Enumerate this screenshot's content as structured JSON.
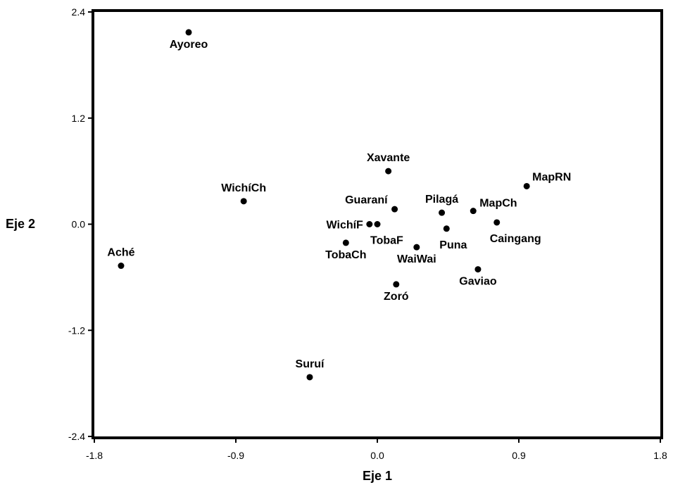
{
  "chart_data": {
    "type": "scatter",
    "title": "",
    "xlabel": "Eje 1",
    "ylabel": "Eje 2",
    "xlim": [
      -1.8,
      1.8
    ],
    "ylim": [
      -2.4,
      2.4
    ],
    "x_ticks": [
      -1.8,
      -0.9,
      0.0,
      0.9,
      1.8
    ],
    "x_tick_labels": [
      "-1.8",
      "-0.9",
      "0.0",
      "0.9",
      "1.8"
    ],
    "y_ticks": [
      -2.4,
      -1.2,
      0.0,
      1.2,
      2.4
    ],
    "y_tick_labels": [
      "-2.4",
      "-1.2",
      "0.0",
      "1.2",
      "2.4"
    ],
    "grid": false,
    "marker_color": "#000000",
    "points": [
      {
        "label": "Ayoreo",
        "x": -1.2,
        "y": 2.17,
        "label_pos": "below"
      },
      {
        "label": "WichíCh",
        "x": -0.85,
        "y": 0.26,
        "label_pos": "above"
      },
      {
        "label": "Aché",
        "x": -1.63,
        "y": -0.47,
        "label_pos": "above"
      },
      {
        "label": "Xavante",
        "x": 0.07,
        "y": 0.6,
        "label_pos": "above"
      },
      {
        "label": "MapRN",
        "x": 0.95,
        "y": 0.43,
        "label_pos": "above-right"
      },
      {
        "label": "Guaraní",
        "x": 0.11,
        "y": 0.17,
        "label_pos": "above-left"
      },
      {
        "label": "Pilagá",
        "x": 0.41,
        "y": 0.13,
        "label_pos": "above"
      },
      {
        "label": "MapCh",
        "x": 0.61,
        "y": 0.15,
        "label_pos": "right"
      },
      {
        "label": "Caingang",
        "x": 0.76,
        "y": 0.02,
        "label_pos": "below-right"
      },
      {
        "label": "WichíF",
        "x": -0.05,
        "y": 0.0,
        "label_pos": "left"
      },
      {
        "label": "TobaF",
        "x": 0.0,
        "y": 0.0,
        "label_pos": "below-right"
      },
      {
        "label": "Puna",
        "x": 0.44,
        "y": -0.05,
        "label_pos": "below-right"
      },
      {
        "label": "TobaCh",
        "x": -0.2,
        "y": -0.21,
        "label_pos": "below"
      },
      {
        "label": "WaiWai",
        "x": 0.25,
        "y": -0.26,
        "label_pos": "below"
      },
      {
        "label": "Gaviao",
        "x": 0.64,
        "y": -0.51,
        "label_pos": "below"
      },
      {
        "label": "Zoró",
        "x": 0.12,
        "y": -0.68,
        "label_pos": "below"
      },
      {
        "label": "Suruí",
        "x": -0.43,
        "y": -1.73,
        "label_pos": "above"
      }
    ]
  }
}
